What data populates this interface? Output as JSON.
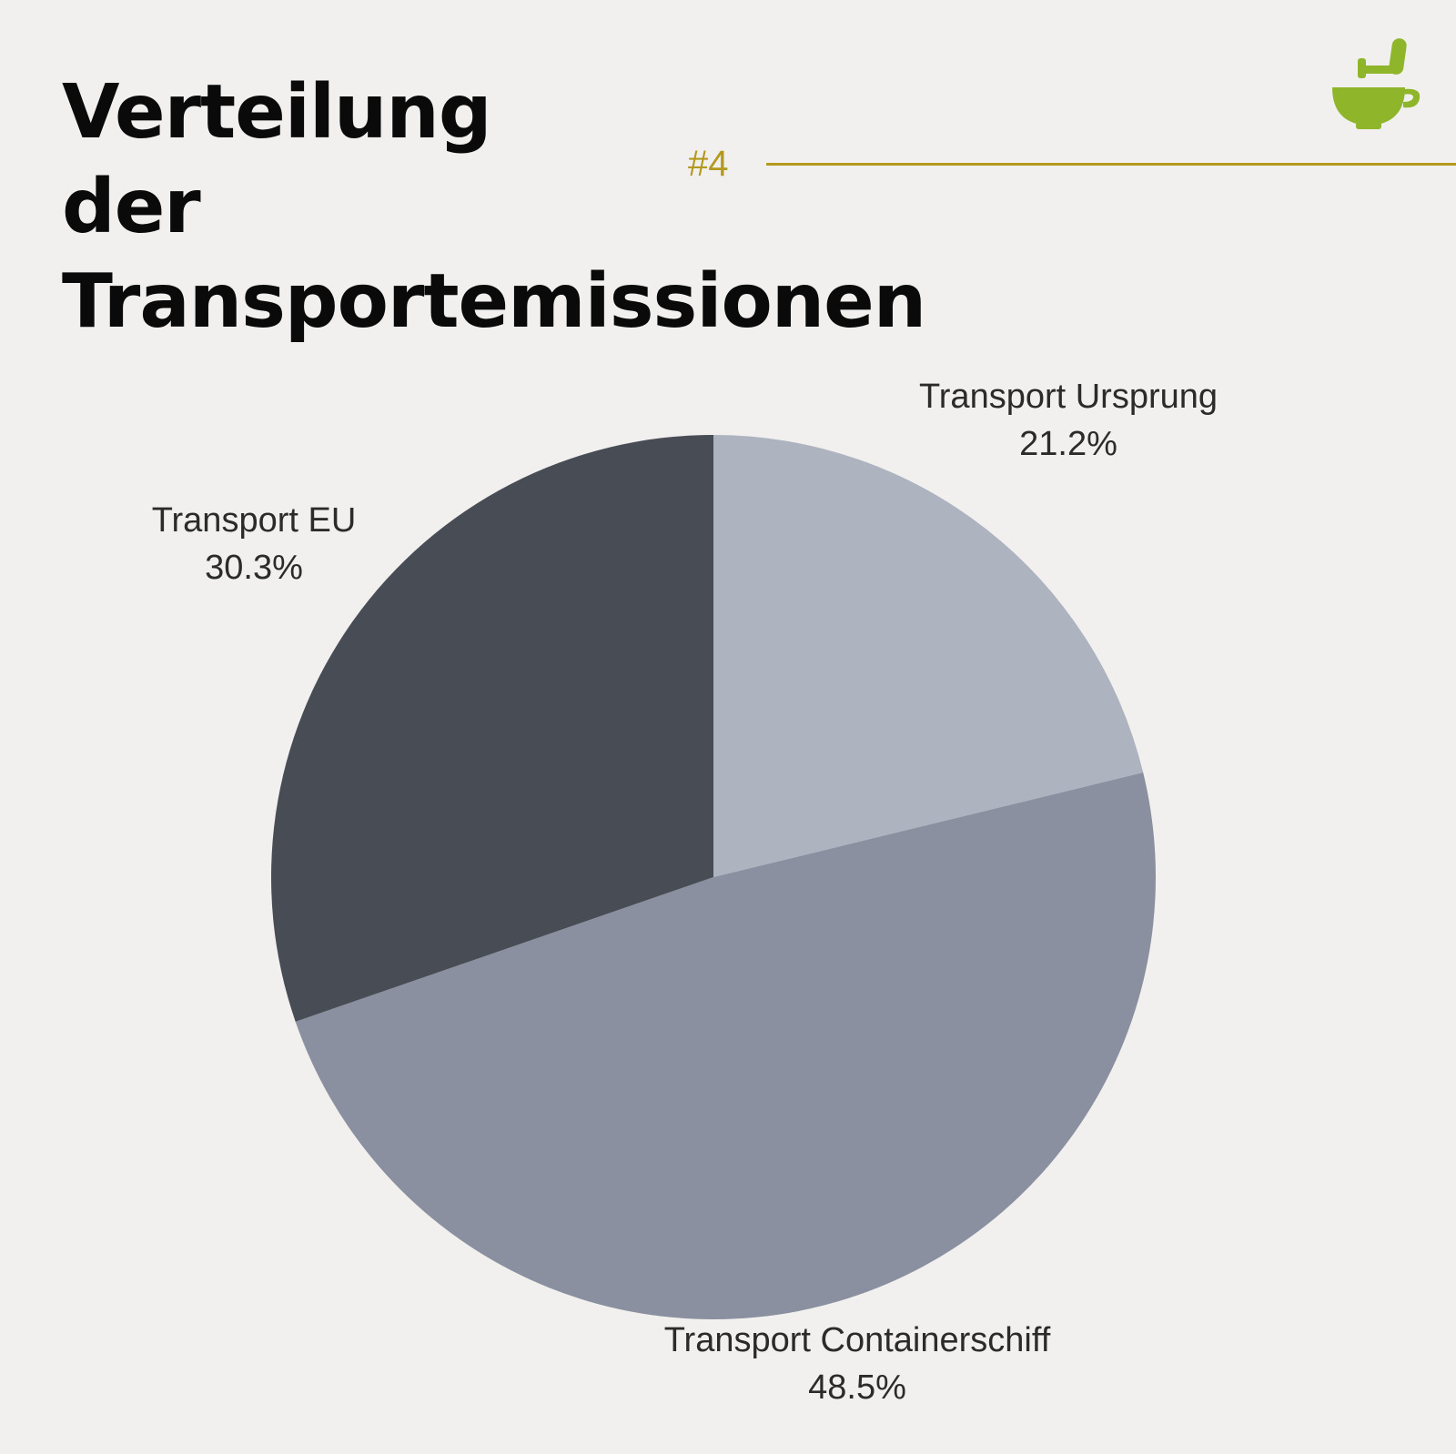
{
  "header": {
    "title_lines": [
      "Verteilung",
      "der",
      "Transportemissionen"
    ],
    "page_number": "#4",
    "accent_color": "#b39a1e",
    "logo_icon": "mortar-and-pestle-icon",
    "logo_color": "#8fb52a"
  },
  "chart_data": {
    "type": "pie",
    "title": "Verteilung der Transportemissionen",
    "slices": [
      {
        "label": "Transport Ursprung",
        "value": 21.2,
        "value_label": "21.2%",
        "color": "#aeb3c0"
      },
      {
        "label": "Transport Containerschiff",
        "value": 48.5,
        "value_label": "48.5%",
        "color": "#8a909f"
      },
      {
        "label": "Transport EU",
        "value": 30.3,
        "value_label": "30.3%",
        "color": "#484c55"
      }
    ],
    "start_angle": "12 o'clock",
    "direction": "clockwise",
    "legend": "none"
  }
}
